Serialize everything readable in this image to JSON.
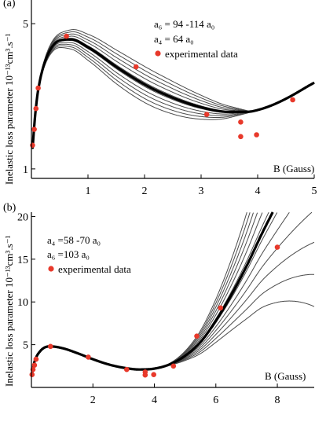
{
  "chart_data": [
    {
      "panel_label": "(a)",
      "type": "line",
      "scale": "log-y",
      "xlabel": "B (Gauss)",
      "ylabel": "Inelastic loss parameter 10⁻¹³cm³.s⁻¹",
      "xlim": [
        0,
        5
      ],
      "ylim": [
        0.9,
        6.5
      ],
      "x_ticks": [
        "1",
        "2",
        "3",
        "4",
        "5"
      ],
      "y_ticks": [
        "1",
        "5"
      ],
      "legend_lines": [
        "a₆ = 94 -114 a₀",
        "a₄ = 64 a₀"
      ],
      "legend_entries": [
        {
          "label": "experimental data",
          "marker": "dot",
          "color": "#e8392b"
        }
      ],
      "grey_curve_count": 10,
      "series": [
        {
          "role": "model-bold",
          "color": "#000000",
          "x": [
            0.02,
            0.12,
            0.3,
            0.5,
            0.7,
            1.0,
            1.5,
            2.0,
            2.5,
            3.0,
            3.5,
            3.8,
            4.0,
            4.3,
            4.6,
            5.0
          ],
          "y": [
            1.25,
            2.4,
            3.6,
            4.15,
            4.2,
            3.85,
            3.1,
            2.55,
            2.2,
            1.98,
            1.88,
            1.88,
            1.92,
            2.05,
            2.25,
            2.6
          ]
        },
        {
          "role": "data-points",
          "color": "#e8392b",
          "x": [
            0.02,
            0.05,
            0.08,
            0.12,
            0.62,
            1.85,
            3.1,
            3.7,
            3.7,
            3.98,
            4.62
          ],
          "y": [
            1.3,
            1.55,
            1.95,
            2.45,
            4.35,
            3.1,
            1.83,
            1.43,
            1.68,
            1.46,
            2.15
          ]
        }
      ]
    },
    {
      "panel_label": "(b)",
      "type": "line",
      "xlabel": "B (Gauss)",
      "ylabel": "Inelastic loss parameter 10⁻¹³cm³.s⁻¹",
      "xlim": [
        0,
        9.2
      ],
      "ylim": [
        0,
        20.5
      ],
      "x_ticks": [
        "2",
        "4",
        "6",
        "8"
      ],
      "y_ticks": [
        "5",
        "10",
        "15",
        "20"
      ],
      "legend_lines": [
        "a₄ =58 -70 a₀",
        "a₆ =103 a₀"
      ],
      "legend_entries": [
        {
          "label": "experimental data",
          "marker": "dot",
          "color": "#e8392b"
        }
      ],
      "grey_curve_count": 12,
      "series": [
        {
          "role": "model-bold",
          "color": "#000000",
          "x": [
            0.02,
            0.1,
            0.3,
            0.6,
            1.0,
            1.5,
            2.0,
            2.5,
            3.0,
            3.5,
            4.0,
            4.5,
            5.0,
            5.5,
            6.0,
            6.5,
            7.0,
            7.5,
            7.85
          ],
          "y": [
            1.7,
            3.0,
            4.3,
            4.8,
            4.6,
            4.0,
            3.3,
            2.7,
            2.3,
            2.1,
            2.2,
            2.7,
            3.7,
            5.3,
            7.8,
            10.8,
            14.2,
            18.0,
            20.5
          ]
        },
        {
          "role": "data-points",
          "color": "#e8392b",
          "x": [
            0.02,
            0.05,
            0.1,
            0.15,
            0.62,
            1.85,
            3.1,
            3.7,
            3.7,
            3.98,
            4.62,
            5.38,
            6.15,
            8.0
          ],
          "y": [
            1.5,
            2.1,
            2.6,
            3.3,
            4.8,
            3.55,
            2.1,
            1.45,
            1.8,
            1.5,
            2.5,
            6.0,
            9.3,
            16.4
          ]
        }
      ]
    }
  ]
}
